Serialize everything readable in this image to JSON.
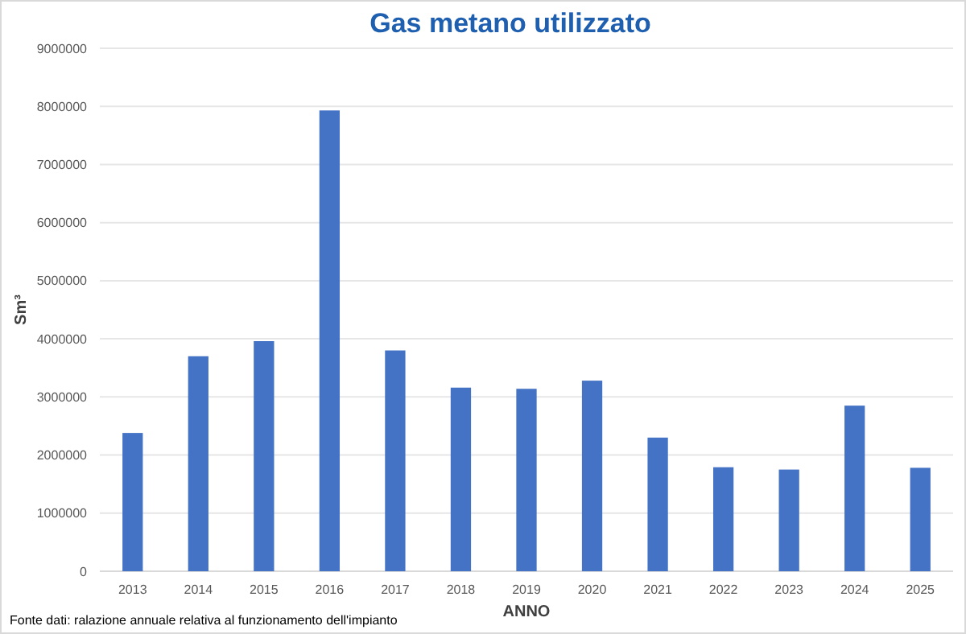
{
  "chart_data": {
    "type": "bar",
    "title": "Gas metano utilizzato",
    "xlabel": "ANNO",
    "ylabel": "Sm³",
    "categories": [
      "2013",
      "2014",
      "2015",
      "2016",
      "2017",
      "2018",
      "2019",
      "2020",
      "2021",
      "2022",
      "2023",
      "2024",
      "2025"
    ],
    "values": [
      2380000,
      3700000,
      3960000,
      7930000,
      3800000,
      3160000,
      3140000,
      3280000,
      2300000,
      1790000,
      1750000,
      2850000,
      1780000
    ],
    "color": "#4472c4",
    "ylim": [
      0,
      9000000
    ],
    "yticks": [
      0,
      1000000,
      2000000,
      3000000,
      4000000,
      5000000,
      6000000,
      7000000,
      8000000,
      9000000
    ],
    "grid": "y",
    "annotations": [
      "Fonte dati: ralazione annuale relativa al funzionamento dell'impianto"
    ]
  }
}
